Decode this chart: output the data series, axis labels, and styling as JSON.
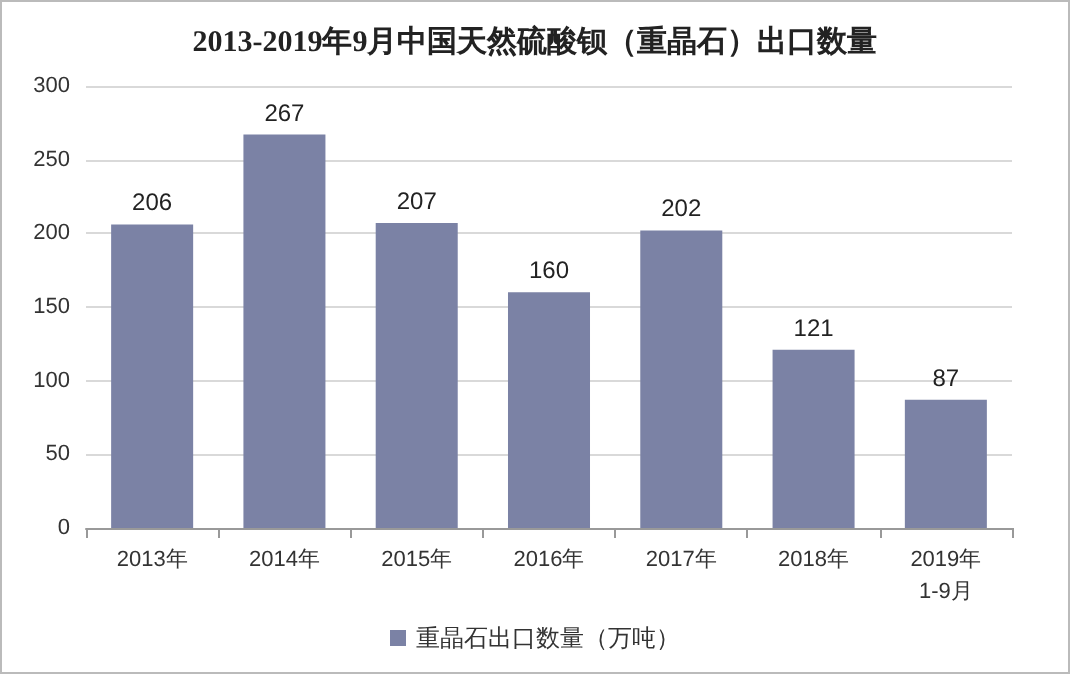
{
  "chart_data": {
    "type": "bar",
    "title": "2013-2019年9月中国天然硫酸钡（重晶石）出口数量",
    "categories": [
      "2013年",
      "2014年",
      "2015年",
      "2016年",
      "2017年",
      "2018年",
      "2019年\n1-9月"
    ],
    "series": [
      {
        "name": "重晶石出口数量（万吨）",
        "color": "#7b82a5",
        "values": [
          206,
          267,
          207,
          160,
          202,
          121,
          87
        ]
      }
    ],
    "ylim": [
      0,
      300
    ],
    "yticks": [
      0,
      50,
      100,
      150,
      200,
      250,
      300
    ],
    "grid": "y",
    "legend": "bottom",
    "data_labels": true
  }
}
